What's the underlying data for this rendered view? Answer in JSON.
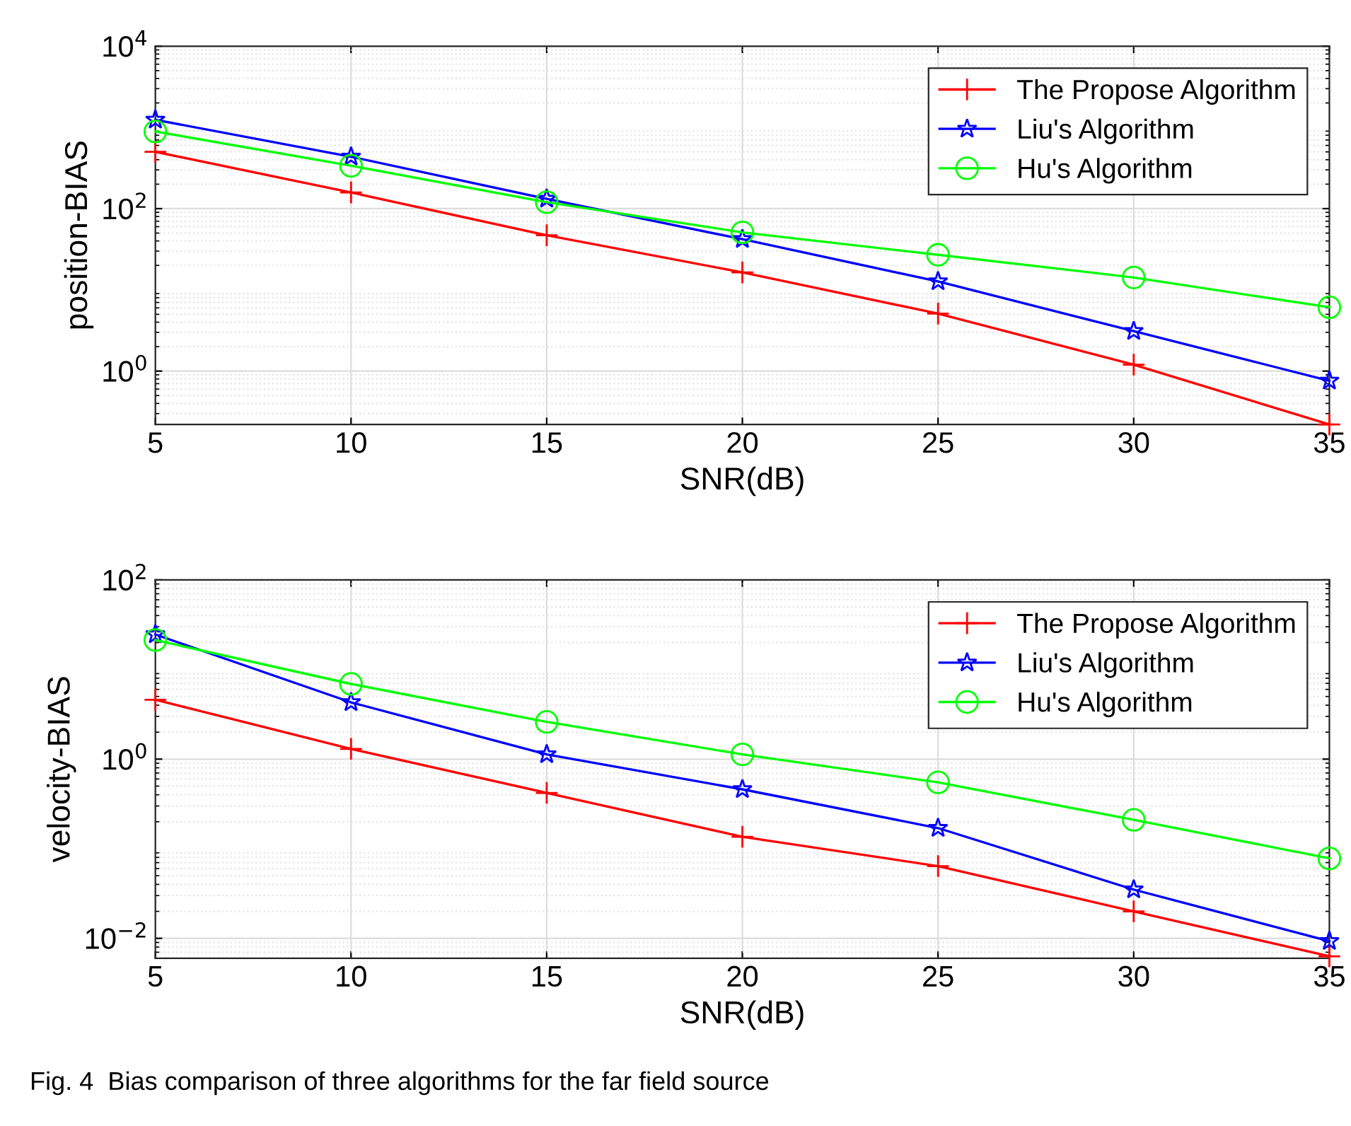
{
  "chart_data": [
    {
      "type": "line",
      "x": [
        5,
        10,
        15,
        20,
        25,
        30,
        35
      ],
      "xlabel": "SNR(dB)",
      "ylabel": "position-BIAS",
      "log": "y",
      "grid": true,
      "legend": "top right",
      "xlim": [
        5,
        35
      ],
      "xticks": [
        5,
        10,
        15,
        20,
        25,
        30,
        35
      ],
      "ylim": [
        0.22,
        10000
      ],
      "yticks": [
        {
          "value": 1,
          "label": "10$^{0}$"
        },
        {
          "value": 100,
          "label": "10$^{2}$"
        },
        {
          "value": 10000,
          "label": "10$^{4}$"
        }
      ],
      "series": [
        {
          "name": "The Propose Algorithm",
          "color": "#ff0000",
          "marker": "cross",
          "values": [
            500,
            158,
            47,
            16.4,
            5.1,
            1.2,
            0.22
          ]
        },
        {
          "name": "Liu's Algorithm",
          "color": "#0000ff",
          "marker": "star",
          "values": [
            1240,
            435,
            132,
            42,
            12.7,
            3.1,
            0.76
          ]
        },
        {
          "name": "Hu's Algorithm",
          "color": "#00ff00",
          "marker": "circle",
          "values": [
            890,
            337,
            120,
            51,
            27,
            14.2,
            6.1
          ]
        }
      ]
    },
    {
      "type": "line",
      "x": [
        5,
        10,
        15,
        20,
        25,
        30,
        35
      ],
      "xlabel": "SNR(dB)",
      "ylabel": "velocity-BIAS",
      "log": "y",
      "grid": true,
      "legend": "top right",
      "xlim": [
        5,
        35
      ],
      "xticks": [
        5,
        10,
        15,
        20,
        25,
        30,
        35
      ],
      "ylim": [
        0.006,
        100
      ],
      "yticks": [
        {
          "value": 0.01,
          "label": "10$^{−2}$"
        },
        {
          "value": 1,
          "label": "10$^{0}$"
        },
        {
          "value": 100,
          "label": "10$^{2}$"
        }
      ],
      "annotations": [
        "Fig. 4  Bias comparison of three algorithms for the far field source"
      ],
      "series": [
        {
          "name": "The Propose Algorithm",
          "color": "#ff0000",
          "marker": "cross",
          "values": [
            4.6,
            1.3,
            0.42,
            0.136,
            0.064,
            0.02,
            0.0063
          ]
        },
        {
          "name": "Liu's Algorithm",
          "color": "#0000ff",
          "marker": "star",
          "values": [
            24.6,
            4.3,
            1.13,
            0.46,
            0.17,
            0.035,
            0.0093
          ]
        },
        {
          "name": "Hu's Algorithm",
          "color": "#00ff00",
          "marker": "circle",
          "values": [
            21.3,
            6.9,
            2.6,
            1.13,
            0.55,
            0.21,
            0.078
          ]
        }
      ]
    }
  ]
}
